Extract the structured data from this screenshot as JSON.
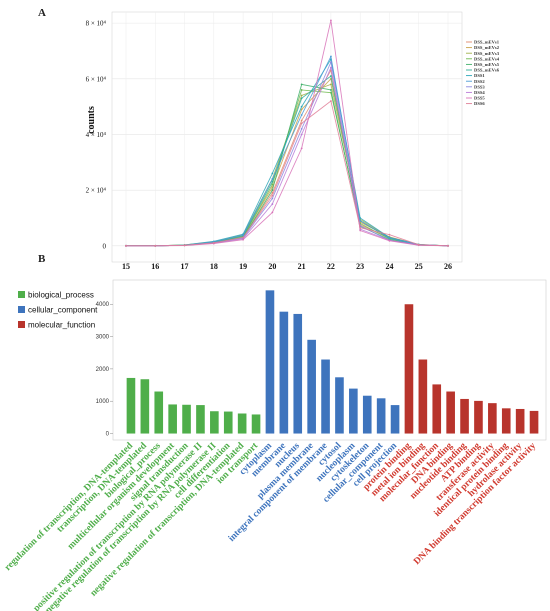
{
  "chart_data": [
    {
      "panel": "A",
      "type": "line",
      "title": "",
      "xlabel": "",
      "ylabel": "counts",
      "x": [
        15,
        16,
        17,
        18,
        19,
        20,
        21,
        22,
        23,
        24,
        25,
        26
      ],
      "xlim": [
        15,
        26
      ],
      "ylim": [
        -0.15,
        8.4
      ],
      "ytick_values": [
        0,
        2,
        4,
        6,
        8
      ],
      "ytick_labels": [
        "0",
        "2 × 10⁴",
        "4 × 10⁴",
        "6 × 10⁴",
        "8 × 10⁴"
      ],
      "grid": true,
      "legend_position": "right",
      "series": [
        {
          "name": "DSS_mEVs1",
          "color": "#e08b6d",
          "values": [
            0,
            0,
            0.02,
            0.12,
            0.3,
            1.9,
            4.5,
            6.3,
            0.75,
            0.28,
            0.04,
            0
          ]
        },
        {
          "name": "DSS_mEVs2",
          "color": "#c9a24a",
          "values": [
            0,
            0,
            0.03,
            0.15,
            0.35,
            2.1,
            4.9,
            6.0,
            0.85,
            0.32,
            0.05,
            0
          ]
        },
        {
          "name": "DSS_mEVs3",
          "color": "#a2b04a",
          "values": [
            0,
            0,
            0.03,
            0.14,
            0.4,
            2.4,
            5.4,
            5.8,
            0.95,
            0.3,
            0.04,
            0
          ]
        },
        {
          "name": "DSS_mEVs4",
          "color": "#6fb84e",
          "values": [
            0,
            0,
            0.02,
            0.13,
            0.33,
            2.2,
            5.6,
            5.5,
            0.8,
            0.25,
            0.03,
            0
          ]
        },
        {
          "name": "DSS_mEVs5",
          "color": "#3fb06a",
          "values": [
            0,
            0,
            0.02,
            0.1,
            0.3,
            2.0,
            5.8,
            5.6,
            0.7,
            0.22,
            0.03,
            0
          ]
        },
        {
          "name": "DSS_mEVs6",
          "color": "#2fae96",
          "values": [
            0,
            0,
            0.02,
            0.12,
            0.36,
            2.3,
            5.3,
            6.1,
            0.9,
            0.27,
            0.04,
            0
          ]
        },
        {
          "name": "DSS1",
          "color": "#2ba7b9",
          "values": [
            0,
            0,
            0.03,
            0.16,
            0.42,
            2.6,
            5.0,
            6.7,
            1.0,
            0.3,
            0.05,
            0
          ]
        },
        {
          "name": "DSS2",
          "color": "#4a9bd6",
          "values": [
            0,
            0,
            0.02,
            0.14,
            0.38,
            2.4,
            4.7,
            6.8,
            0.9,
            0.28,
            0.04,
            0
          ]
        },
        {
          "name": "DSS3",
          "color": "#8b88e0",
          "values": [
            0,
            0,
            0.02,
            0.1,
            0.28,
            1.7,
            4.2,
            6.6,
            0.72,
            0.2,
            0.03,
            0
          ]
        },
        {
          "name": "DSS4",
          "color": "#b97ad8",
          "values": [
            0,
            0,
            0.02,
            0.09,
            0.25,
            1.5,
            4.0,
            6.4,
            0.6,
            0.2,
            0.03,
            0
          ]
        },
        {
          "name": "DSS5",
          "color": "#d873b8",
          "values": [
            0,
            0,
            0.01,
            0.08,
            0.22,
            1.2,
            3.5,
            8.1,
            0.55,
            0.18,
            0.02,
            0
          ]
        },
        {
          "name": "DSS6",
          "color": "#e07e96",
          "values": [
            0,
            0,
            0.02,
            0.11,
            0.3,
            1.8,
            4.4,
            5.2,
            0.65,
            0.4,
            0.04,
            0
          ]
        }
      ]
    },
    {
      "panel": "B",
      "type": "bar",
      "title": "",
      "xlabel": "",
      "ylabel": "",
      "ylim": [
        -200,
        4750
      ],
      "ytick_values": [
        0,
        1000,
        2000,
        3000,
        4000
      ],
      "ytick_labels": [
        "0",
        "1000",
        "2000",
        "3000",
        "4000"
      ],
      "legend_position": "top-left",
      "legend": [
        {
          "label": "biological_process",
          "color": "#4fae4a"
        },
        {
          "label": "cellular_component",
          "color": "#3e74bd"
        },
        {
          "label": "molecular_function",
          "color": "#b8342c"
        }
      ],
      "categories": [
        {
          "label": "regulation of transcription, DNA-templated",
          "group": "biological_process",
          "value": 1720
        },
        {
          "label": "transcription, DNA-templated",
          "group": "biological_process",
          "value": 1680
        },
        {
          "label": "biological_process",
          "group": "biological_process",
          "value": 1300
        },
        {
          "label": "multicellular organism development",
          "group": "biological_process",
          "value": 900
        },
        {
          "label": "signal transduction",
          "group": "biological_process",
          "value": 890
        },
        {
          "label": "positive regulation of transcription by RNA polymerase II",
          "group": "biological_process",
          "value": 880
        },
        {
          "label": "negative regulation of transcription by RNA polymerase II",
          "group": "biological_process",
          "value": 690
        },
        {
          "label": "cell differentiation",
          "group": "biological_process",
          "value": 680
        },
        {
          "label": "negative regulation of transcription, DNA-templated",
          "group": "biological_process",
          "value": 620
        },
        {
          "label": "ion transport",
          "group": "biological_process",
          "value": 590
        },
        {
          "label": "cytoplasm",
          "group": "cellular_component",
          "value": 4430
        },
        {
          "label": "membrane",
          "group": "cellular_component",
          "value": 3770
        },
        {
          "label": "nucleus",
          "group": "cellular_component",
          "value": 3700
        },
        {
          "label": "plasma membrane",
          "group": "cellular_component",
          "value": 2900
        },
        {
          "label": "integral component of membrane",
          "group": "cellular_component",
          "value": 2290
        },
        {
          "label": "cytosol",
          "group": "cellular_component",
          "value": 1740
        },
        {
          "label": "nucleoplasm",
          "group": "cellular_component",
          "value": 1390
        },
        {
          "label": "cytoskeleton",
          "group": "cellular_component",
          "value": 1170
        },
        {
          "label": "cellular_component",
          "group": "cellular_component",
          "value": 1090
        },
        {
          "label": "cell projection",
          "group": "cellular_component",
          "value": 880
        },
        {
          "label": "protein binding",
          "group": "molecular_function",
          "value": 4000
        },
        {
          "label": "metal ion binding",
          "group": "molecular_function",
          "value": 2290
        },
        {
          "label": "molecular_function",
          "group": "molecular_function",
          "value": 1520
        },
        {
          "label": "DNA binding",
          "group": "molecular_function",
          "value": 1300
        },
        {
          "label": "nucleotide binding",
          "group": "molecular_function",
          "value": 1070
        },
        {
          "label": "ATP binding",
          "group": "molecular_function",
          "value": 1010
        },
        {
          "label": "transferase activity",
          "group": "molecular_function",
          "value": 940
        },
        {
          "label": "identical protein binding",
          "group": "molecular_function",
          "value": 780
        },
        {
          "label": "hydrolase activity",
          "group": "molecular_function",
          "value": 760
        },
        {
          "label": "DNA binding transcription factor activity",
          "group": "molecular_function",
          "value": 700
        }
      ],
      "group_colors": {
        "biological_process": "#4fae4a",
        "cellular_component": "#3e74bd",
        "molecular_function": "#b8342c"
      },
      "label_colors": {
        "biological_process": "#4fae4a",
        "cellular_component": "#3e74bd",
        "molecular_function": "#d13a2f"
      }
    }
  ]
}
